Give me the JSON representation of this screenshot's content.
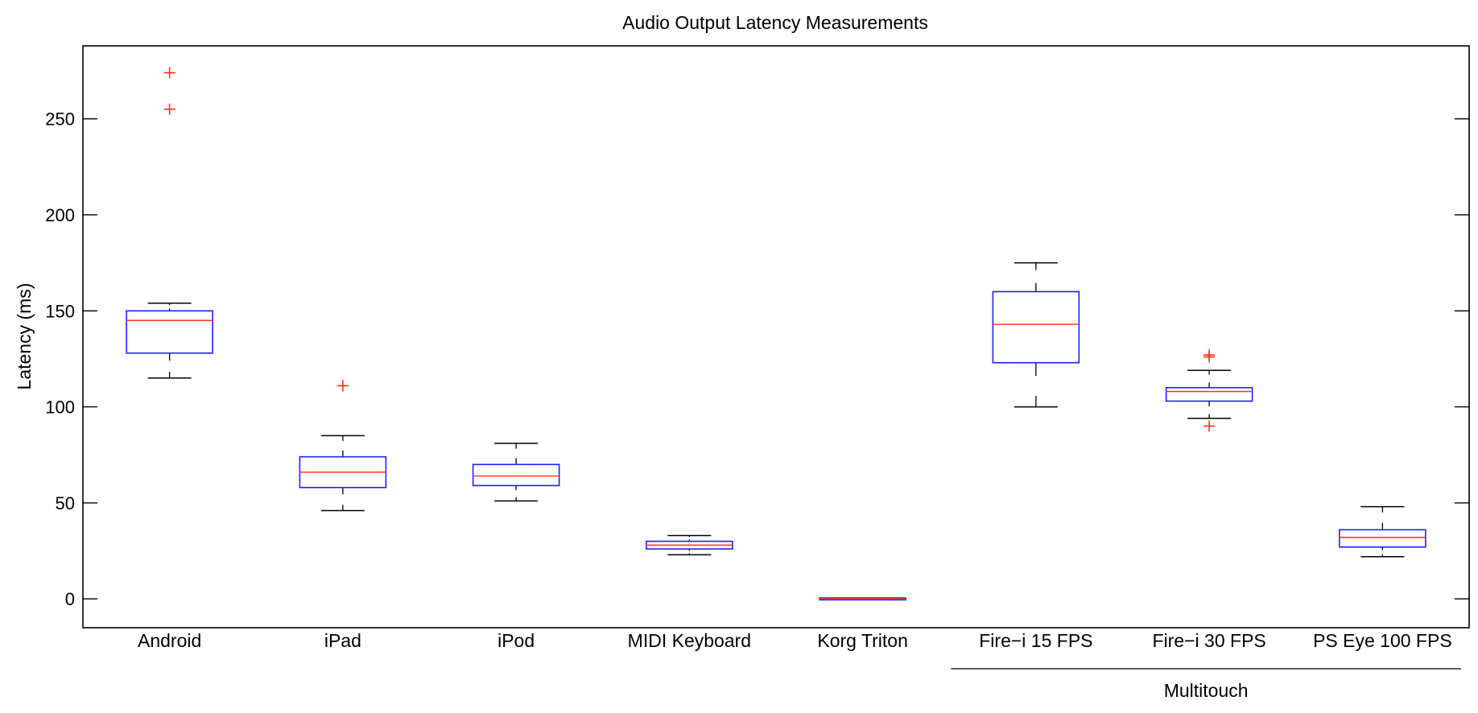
{
  "chart_data": {
    "type": "boxplot",
    "title": "Audio Output Latency Measurements",
    "xlabel": "",
    "ylabel": "Latency (ms)",
    "ylim": [
      -15,
      288
    ],
    "yticks": [
      0,
      50,
      100,
      150,
      200,
      250
    ],
    "grid": false,
    "colors": {
      "box": "#1f1fff",
      "median": "#ff3b1f",
      "outlier": "#ff2a10",
      "whisker": "#000000",
      "axis": "#000000"
    },
    "categories": [
      "Android",
      "iPad",
      "iPod",
      "MIDI Keyboard",
      "Korg Triton",
      "Fire−i 15 FPS",
      "Fire−i 30 FPS",
      "PS Eye 100 FPS"
    ],
    "boxes": [
      {
        "label": "Android",
        "whisker_low": 115,
        "q1": 128,
        "median": 145,
        "q3": 150,
        "whisker_high": 154,
        "outliers": [
          255,
          274
        ]
      },
      {
        "label": "iPad",
        "whisker_low": 46,
        "q1": 58,
        "median": 66,
        "q3": 74,
        "whisker_high": 85,
        "outliers": [
          111
        ]
      },
      {
        "label": "iPod",
        "whisker_low": 51,
        "q1": 59,
        "median": 64,
        "q3": 70,
        "whisker_high": 81,
        "outliers": []
      },
      {
        "label": "MIDI Keyboard",
        "whisker_low": 23,
        "q1": 26,
        "median": 28,
        "q3": 30,
        "whisker_high": 33,
        "outliers": []
      },
      {
        "label": "Korg Triton",
        "whisker_low": -0.5,
        "q1": -0.5,
        "median": 0,
        "q3": 0.5,
        "whisker_high": 0.5,
        "outliers": []
      },
      {
        "label": "Fire−i 15 FPS",
        "whisker_low": 100,
        "q1": 123,
        "median": 143,
        "q3": 160,
        "whisker_high": 175,
        "outliers": []
      },
      {
        "label": "Fire−i 30 FPS",
        "whisker_low": 94,
        "q1": 103,
        "median": 108,
        "q3": 110,
        "whisker_high": 119,
        "outliers": [
          90,
          126,
          127
        ]
      },
      {
        "label": "PS Eye 100 FPS",
        "whisker_low": 22,
        "q1": 27,
        "median": 32,
        "q3": 36,
        "whisker_high": 48,
        "outliers": []
      }
    ],
    "group_annotation": {
      "label": "Multitouch",
      "from_category": 5,
      "to_category": 7
    }
  }
}
